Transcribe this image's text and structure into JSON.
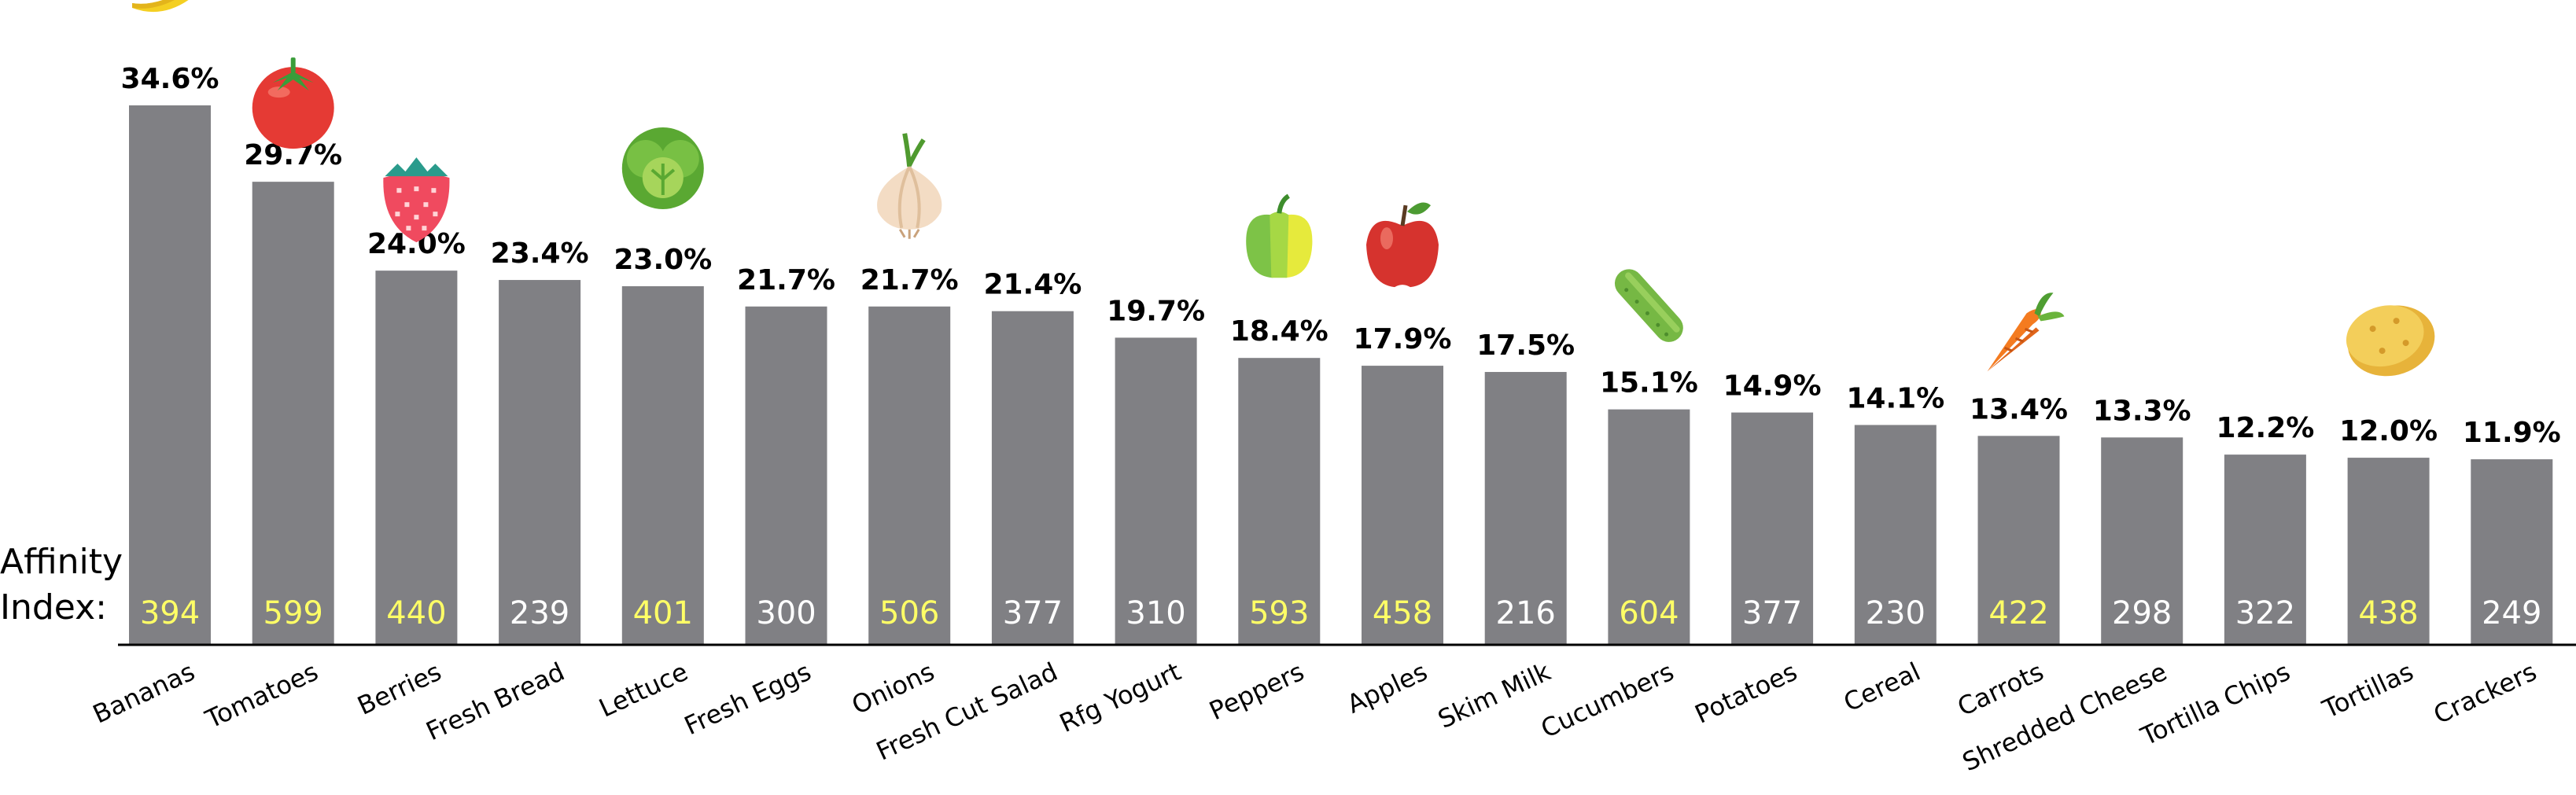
{
  "chart_data": {
    "type": "bar",
    "title": "",
    "xlabel": "",
    "ylabel": "",
    "categories": [
      "Bananas",
      "Tomatoes",
      "Berries",
      "Fresh Bread",
      "Lettuce",
      "Fresh Eggs",
      "Onions",
      "Fresh Cut Salad",
      "Rfg Yogurt",
      "Peppers",
      "Apples",
      "Skim Milk",
      "Cucumbers",
      "Potatoes",
      "Cereal",
      "Carrots",
      "Shredded Cheese",
      "Tortilla Chips",
      "Tortillas",
      "Crackers"
    ],
    "values": [
      34.6,
      29.7,
      24.0,
      23.4,
      23.0,
      21.7,
      21.7,
      21.4,
      19.7,
      18.4,
      17.9,
      17.5,
      15.1,
      14.9,
      14.1,
      13.4,
      13.3,
      12.2,
      12.0,
      11.9
    ],
    "value_labels": [
      "34.6%",
      "29.7%",
      "24.0%",
      "23.4%",
      "23.0%",
      "21.7%",
      "21.7%",
      "21.4%",
      "19.7%",
      "18.4%",
      "17.9%",
      "17.5%",
      "15.1%",
      "14.9%",
      "14.1%",
      "13.4%",
      "13.3%",
      "12.2%",
      "12.0%",
      "11.9%"
    ],
    "affinity_index": [
      "394",
      "599",
      "440",
      "239",
      "401",
      "300",
      "506",
      "377",
      "310",
      "593",
      "458",
      "216",
      "604",
      "377",
      "230",
      "422",
      "298",
      "322",
      "438",
      "249"
    ],
    "affinity_highlight": [
      true,
      true,
      true,
      false,
      true,
      false,
      true,
      false,
      false,
      true,
      true,
      false,
      true,
      false,
      false,
      true,
      false,
      false,
      true,
      false
    ],
    "produce_icons": [
      "banana-icon",
      "tomato-icon",
      "strawberry-icon",
      null,
      "lettuce-icon",
      null,
      "onion-icon",
      null,
      null,
      "pepper-icon",
      "apple-icon",
      null,
      "cucumber-icon",
      null,
      null,
      "carrot-icon",
      null,
      null,
      "potato-icon",
      null
    ],
    "affinity_label": "Affinity\nIndex:",
    "colors": {
      "bar": "#808084",
      "axis": "#000000",
      "index_highlight": "#ffff66",
      "index_normal": "#ffffff",
      "value_label": "#000000"
    },
    "ylim": [
      0,
      36
    ],
    "grid": false,
    "legend": "none"
  }
}
